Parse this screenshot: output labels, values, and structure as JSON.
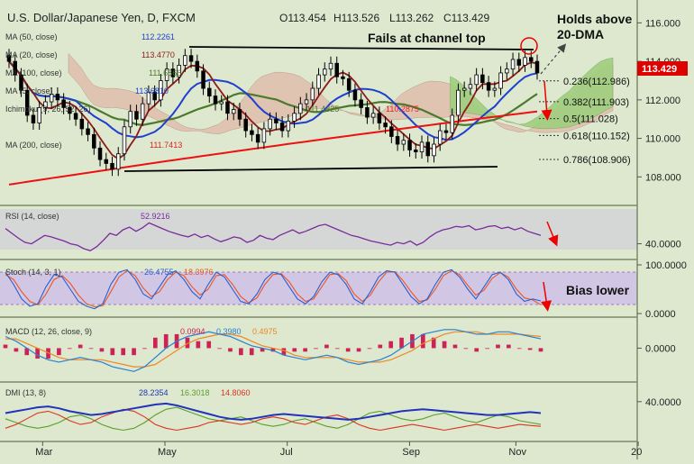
{
  "header": {
    "title": "U.S. Dollar/Japanese Yen, D, FXCM",
    "ohlc": {
      "o": "O113.454",
      "h": "H113.526",
      "l": "L113.262",
      "c": "C113.429"
    }
  },
  "annotations": {
    "holds_above_line1": "Holds above",
    "holds_above_line2": "20-DMA",
    "fails_at_top": "Fails at channel top",
    "bias_lower": "Bias lower"
  },
  "colors": {
    "background": "#dde8cf",
    "price": "#000000",
    "ma20": "#8b1a1a",
    "ma50": "#1f3fcf",
    "ma100": "#dd2222",
    "ma200": "#ee1111",
    "ma_green": "#4a7a2a",
    "cloud_red": "#e0b8a8",
    "cloud_green": "#9fcf7f",
    "rsi": "#7a2a9a",
    "stoch_k": "#2a5fd0",
    "stoch_d": "#ee5522",
    "macd": "#2a7fd0",
    "signal": "#ee8822",
    "hist": "#cc2255",
    "dmi_plus": "#5aa02a",
    "dmi_minus": "#dd3322",
    "adx": "#2233bb",
    "price_badge": "#dd0000"
  },
  "chart_data": [
    {
      "type": "candlestick",
      "title": "U.S. Dollar/Japanese Yen, D, FXCM",
      "x_ticks": [
        "Mar",
        "May",
        "Jul",
        "Sep",
        "Nov",
        "20"
      ],
      "y_ticks": [
        "116.000",
        "114.000",
        "112.000",
        "110.000",
        "108.000"
      ],
      "ylim": [
        106.8,
        117.0
      ],
      "last_price": "113.429",
      "indicators": [
        {
          "name": "MA (50, close)",
          "value": "112.2261"
        },
        {
          "name": "MA (20, close)",
          "value": "113.4770"
        },
        {
          "name": "MA (100, close)",
          "value": "111.6866"
        },
        {
          "name": "MA (5, close)",
          "value": "113.6810"
        },
        {
          "name": "Ichimoku (9, 26, 52, 26)",
          "values": [
            "111.4325",
            "110.2875"
          ]
        },
        {
          "name": "MA (200, close)",
          "value": "111.7413"
        }
      ],
      "fib_levels": [
        {
          "label": "0.236(112.986)",
          "value": 112.986
        },
        {
          "label": "0.382(111.903)",
          "value": 111.903
        },
        {
          "label": "0.5(111.028)",
          "value": 111.028
        },
        {
          "label": "0.618(110.152)",
          "value": 110.152
        },
        {
          "label": "0.786(108.906)",
          "value": 108.906
        }
      ],
      "close_approx": [
        114.0,
        113.3,
        112.5,
        111.2,
        110.8,
        111.6,
        111.9,
        112.3,
        112.0,
        111.6,
        111.3,
        111.0,
        110.5,
        110.2,
        109.5,
        108.9,
        108.7,
        108.4,
        109.2,
        110.6,
        111.4,
        111.0,
        111.8,
        112.4,
        112.0,
        113.0,
        113.6,
        113.2,
        113.8,
        114.3,
        114.0,
        113.5,
        112.6,
        112.2,
        111.8,
        111.9,
        111.3,
        111.5,
        111.0,
        110.4,
        110.2,
        109.8,
        110.5,
        111.0,
        110.8,
        110.4,
        110.9,
        111.3,
        111.8,
        112.0,
        112.6,
        113.3,
        113.6,
        113.9,
        113.2,
        113.1,
        112.5,
        112.0,
        111.6,
        111.1,
        111.3,
        110.8,
        110.6,
        110.1,
        109.7,
        109.9,
        109.4,
        109.3,
        109.8,
        109.1,
        109.7,
        110.4,
        110.3,
        111.2,
        112.5,
        112.6,
        112.8,
        113.3,
        112.9,
        112.5,
        112.6,
        113.4,
        113.6,
        114.1,
        113.8,
        114.2,
        114.0,
        113.4
      ]
    },
    {
      "type": "line",
      "title": "RSI (14, close)",
      "value": "52.9216",
      "y_ticks": [
        "40.0000"
      ],
      "ylim": [
        20,
        90
      ],
      "values": [
        62,
        55,
        48,
        42,
        40,
        46,
        52,
        50,
        47,
        44,
        40,
        38,
        33,
        30,
        36,
        45,
        55,
        52,
        60,
        64,
        58,
        63,
        70,
        66,
        62,
        58,
        55,
        52,
        50,
        54,
        49,
        52,
        47,
        43,
        46,
        50,
        48,
        42,
        45,
        52,
        48,
        46,
        52,
        56,
        60,
        55,
        58,
        62,
        66,
        68,
        64,
        60,
        56,
        52,
        50,
        47,
        44,
        42,
        40,
        38,
        42,
        40,
        44,
        38,
        42,
        50,
        56,
        60,
        62,
        65,
        64,
        66,
        60,
        62,
        65,
        66,
        62,
        64,
        60,
        63,
        58,
        55,
        52
      ]
    },
    {
      "type": "line",
      "title": "Stoch (14, 3, 1)",
      "values_label": [
        "26.4755",
        "18.3976"
      ],
      "y_ticks": [
        "100.0000",
        "0.0000"
      ],
      "ylim": [
        0,
        100
      ],
      "series": [
        {
          "name": "%K",
          "values": [
            85,
            60,
            30,
            15,
            20,
            55,
            80,
            75,
            50,
            25,
            15,
            10,
            20,
            60,
            85,
            90,
            70,
            40,
            30,
            55,
            80,
            88,
            70,
            45,
            30,
            60,
            85,
            75,
            50,
            25,
            20,
            40,
            70,
            85,
            80,
            55,
            30,
            20,
            35,
            65,
            85,
            80,
            60,
            30,
            20,
            45,
            75,
            88,
            85,
            60,
            35,
            20,
            30,
            60,
            85,
            90,
            75,
            50,
            30,
            55,
            80,
            85,
            70,
            40,
            25,
            30,
            26
          ]
        },
        {
          "name": "%D",
          "values": [
            80,
            70,
            45,
            25,
            18,
            40,
            70,
            78,
            62,
            38,
            20,
            14,
            16,
            45,
            75,
            88,
            78,
            52,
            35,
            45,
            70,
            85,
            78,
            55,
            38,
            50,
            78,
            80,
            60,
            35,
            22,
            32,
            60,
            80,
            82,
            65,
            40,
            25,
            30,
            55,
            80,
            82,
            68,
            40,
            25,
            38,
            65,
            85,
            86,
            68,
            45,
            25,
            28,
            50,
            78,
            88,
            80,
            58,
            38,
            48,
            72,
            84,
            75,
            50,
            32,
            28,
            18
          ]
        }
      ]
    },
    {
      "type": "line",
      "title": "MACD (12, 26, close, 9)",
      "values_label": [
        "0.0994",
        "0.3980",
        "0.4975"
      ],
      "y_ticks": [
        "0.0000"
      ],
      "ylim": [
        -1.3,
        1.1
      ],
      "series": [
        {
          "name": "MACD",
          "values": [
            0.5,
            0.3,
            0.0,
            -0.3,
            -0.5,
            -0.6,
            -0.5,
            -0.4,
            -0.5,
            -0.6,
            -0.8,
            -0.9,
            -1.0,
            -0.8,
            -0.4,
            0.0,
            0.3,
            0.5,
            0.6,
            0.7,
            0.6,
            0.5,
            0.3,
            0.1,
            0.0,
            -0.1,
            -0.3,
            -0.4,
            -0.5,
            -0.4,
            -0.3,
            -0.4,
            -0.6,
            -0.7,
            -0.6,
            -0.5,
            -0.3,
            0.0,
            0.3,
            0.6,
            0.7,
            0.8,
            0.8,
            0.7,
            0.6,
            0.6,
            0.7,
            0.7,
            0.6,
            0.5,
            0.4
          ]
        },
        {
          "name": "Signal",
          "values": [
            0.4,
            0.4,
            0.2,
            0.0,
            -0.2,
            -0.4,
            -0.5,
            -0.5,
            -0.5,
            -0.5,
            -0.6,
            -0.7,
            -0.8,
            -0.8,
            -0.7,
            -0.4,
            -0.1,
            0.2,
            0.4,
            0.5,
            0.6,
            0.6,
            0.5,
            0.3,
            0.1,
            0.0,
            -0.1,
            -0.3,
            -0.4,
            -0.4,
            -0.4,
            -0.4,
            -0.5,
            -0.6,
            -0.6,
            -0.6,
            -0.5,
            -0.3,
            -0.1,
            0.2,
            0.4,
            0.6,
            0.7,
            0.7,
            0.7,
            0.6,
            0.6,
            0.6,
            0.6,
            0.55,
            0.5
          ]
        }
      ]
    },
    {
      "type": "line",
      "title": "DMI (13, 8)",
      "values_label": [
        "28.2354",
        "16.3018",
        "14.8060"
      ],
      "y_ticks": [
        "40.0000"
      ],
      "ylim": [
        0,
        55
      ],
      "series": [
        {
          "name": "ADX",
          "values": [
            28,
            30,
            32,
            34,
            35,
            33,
            30,
            28,
            26,
            27,
            29,
            31,
            33,
            35,
            37,
            38,
            36,
            33,
            30,
            27,
            24,
            22,
            21,
            22,
            24,
            26,
            27,
            26,
            25,
            24,
            23,
            22,
            21,
            22,
            24,
            26,
            28,
            30,
            31,
            32,
            31,
            30,
            29,
            28,
            27,
            26,
            26,
            27,
            28,
            29,
            28
          ]
        },
        {
          "name": "+DI",
          "values": [
            22,
            18,
            14,
            12,
            14,
            18,
            24,
            26,
            22,
            16,
            12,
            10,
            12,
            18,
            26,
            32,
            34,
            30,
            26,
            22,
            20,
            22,
            24,
            20,
            16,
            14,
            16,
            20,
            22,
            18,
            14,
            12,
            16,
            22,
            28,
            30,
            26,
            22,
            20,
            22,
            26,
            28,
            24,
            20,
            18,
            22,
            26,
            24,
            20,
            18,
            16
          ]
        },
        {
          "name": "-DI",
          "values": [
            12,
            16,
            22,
            28,
            30,
            26,
            20,
            16,
            18,
            24,
            28,
            32,
            30,
            24,
            16,
            12,
            10,
            12,
            14,
            18,
            20,
            18,
            16,
            18,
            22,
            24,
            22,
            18,
            16,
            20,
            24,
            26,
            22,
            16,
            12,
            10,
            12,
            14,
            16,
            14,
            12,
            10,
            12,
            14,
            16,
            14,
            12,
            14,
            16,
            15,
            14
          ]
        }
      ]
    }
  ]
}
